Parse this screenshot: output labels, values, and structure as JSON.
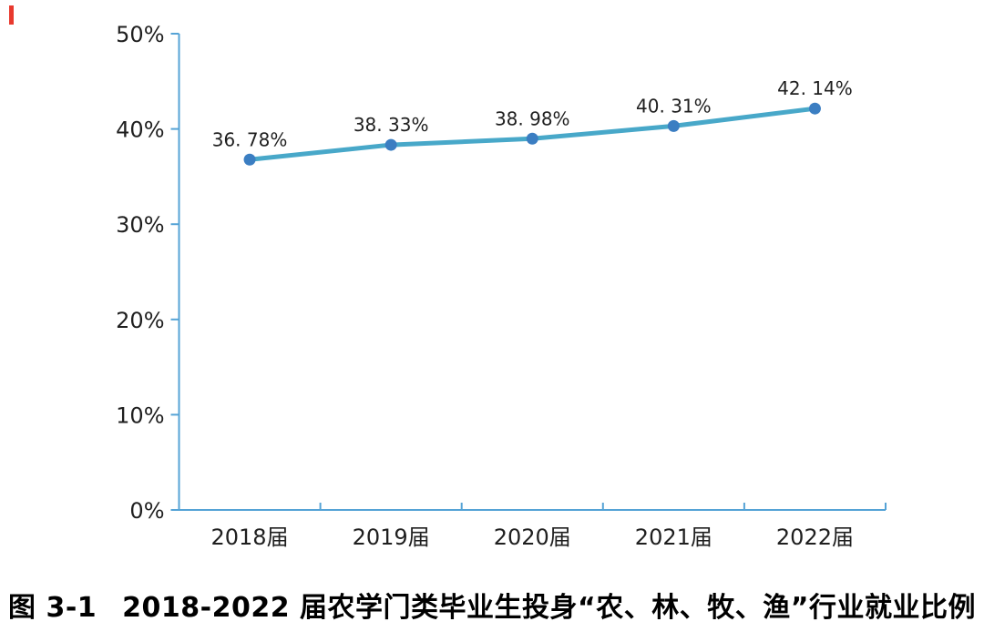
{
  "page": {
    "background": "#ffffff",
    "red_mark_color": "#e8392e"
  },
  "chart_data": {
    "type": "line",
    "categories": [
      "2018届",
      "2019届",
      "2020届",
      "2021届",
      "2022届"
    ],
    "values": [
      36.78,
      38.33,
      38.98,
      40.31,
      42.14
    ],
    "value_labels": [
      "36. 78%",
      "38. 33%",
      "38. 98%",
      "40. 31%",
      "42. 14%"
    ],
    "ylim": [
      0,
      50
    ],
    "ytick_labels": [
      "0%",
      "10%",
      "20%",
      "30%",
      "40%",
      "50%"
    ],
    "grid": false,
    "legend": "none",
    "colors": {
      "line": "#48a8c9",
      "marker": "#3b7ec2",
      "axis": "#55a3d6",
      "text": "#1f1f1f"
    }
  },
  "caption": {
    "figure_label": "图 3-1",
    "text": "2018-2022 届农学门类毕业生投身“农、林、牧、渔”行业就业比例"
  }
}
